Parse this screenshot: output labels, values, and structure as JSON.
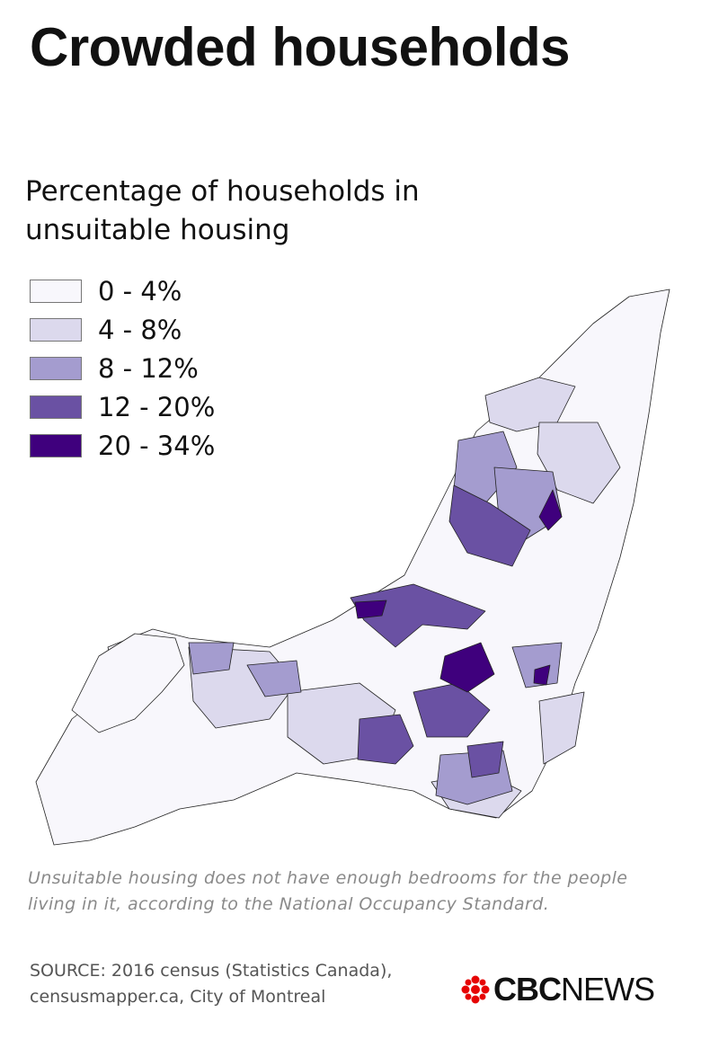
{
  "title": "Crowded households",
  "subtitle": "Percentage of households in unsuitable housing",
  "legend": {
    "items": [
      {
        "label": "0 - 4%",
        "color": "#f8f7fc"
      },
      {
        "label": "4 - 8%",
        "color": "#dcd9ed"
      },
      {
        "label": "8 - 12%",
        "color": "#a49ccf"
      },
      {
        "label": "12 - 20%",
        "color": "#6a51a3"
      },
      {
        "label": "20 - 34%",
        "color": "#3f007d"
      }
    ]
  },
  "note": "Unsuitable housing does not have enough bedrooms for the people living in it, according to the National Occupancy Standard.",
  "source": "SOURCE: 2016 census (Statistics Canada), censusmapper.ca, City of Montreal",
  "logo": {
    "brand": "CBC",
    "section": "NEWS"
  }
}
